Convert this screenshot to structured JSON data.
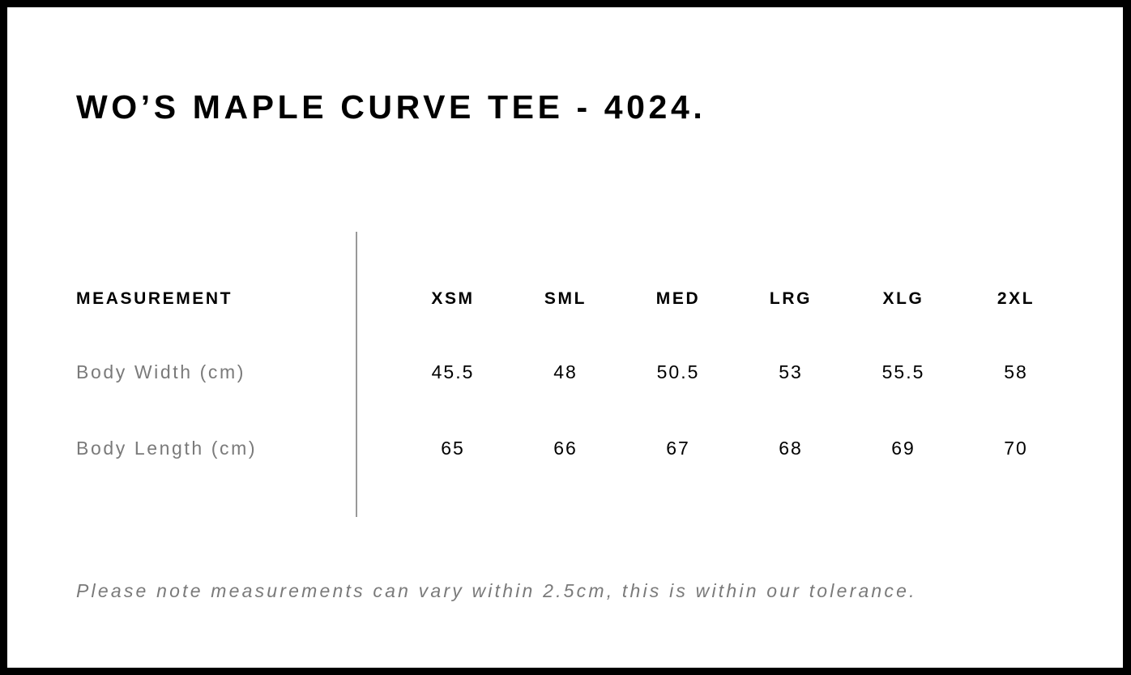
{
  "title": "WO’S MAPLE CURVE TEE - 4024.",
  "table": {
    "header_label": "MEASUREMENT",
    "sizes": [
      "XSM",
      "SML",
      "MED",
      "LRG",
      "XLG",
      "2XL"
    ],
    "rows": [
      {
        "label": "Body Width (cm)",
        "values": [
          "45.5",
          "48",
          "50.5",
          "53",
          "55.5",
          "58"
        ]
      },
      {
        "label": "Body Length (cm)",
        "values": [
          "65",
          "66",
          "67",
          "68",
          "69",
          "70"
        ]
      }
    ]
  },
  "note": "Please note measurements can vary within 2.5cm, this is within our tolerance."
}
